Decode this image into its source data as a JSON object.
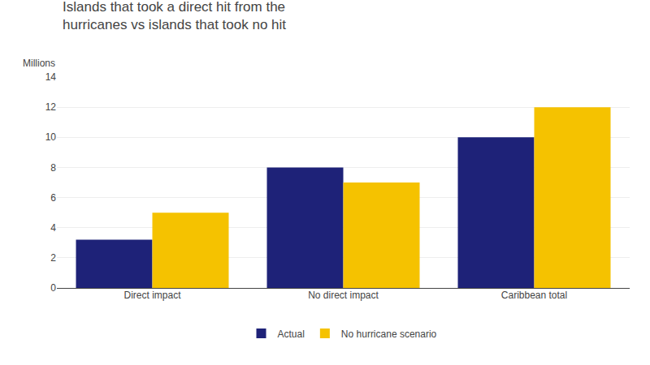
{
  "chart_data": {
    "type": "bar",
    "title": "Islands that took a direct hit from the\nhurricanes vs islands that took no hit",
    "ylabel": "Millions",
    "categories": [
      "Direct impact",
      "No direct impact",
      "Caribbean total"
    ],
    "series": [
      {
        "name": "Actual",
        "color": "#1e2278",
        "values": [
          3.2,
          8.0,
          10.0
        ]
      },
      {
        "name": "No hurricane scenario",
        "color": "#f5c200",
        "values": [
          5.0,
          7.0,
          12.0
        ]
      }
    ],
    "ylim": [
      0,
      14
    ],
    "yticks": [
      0,
      2,
      4,
      6,
      8,
      10,
      12,
      14
    ],
    "grid": true,
    "legend": "bottom"
  }
}
